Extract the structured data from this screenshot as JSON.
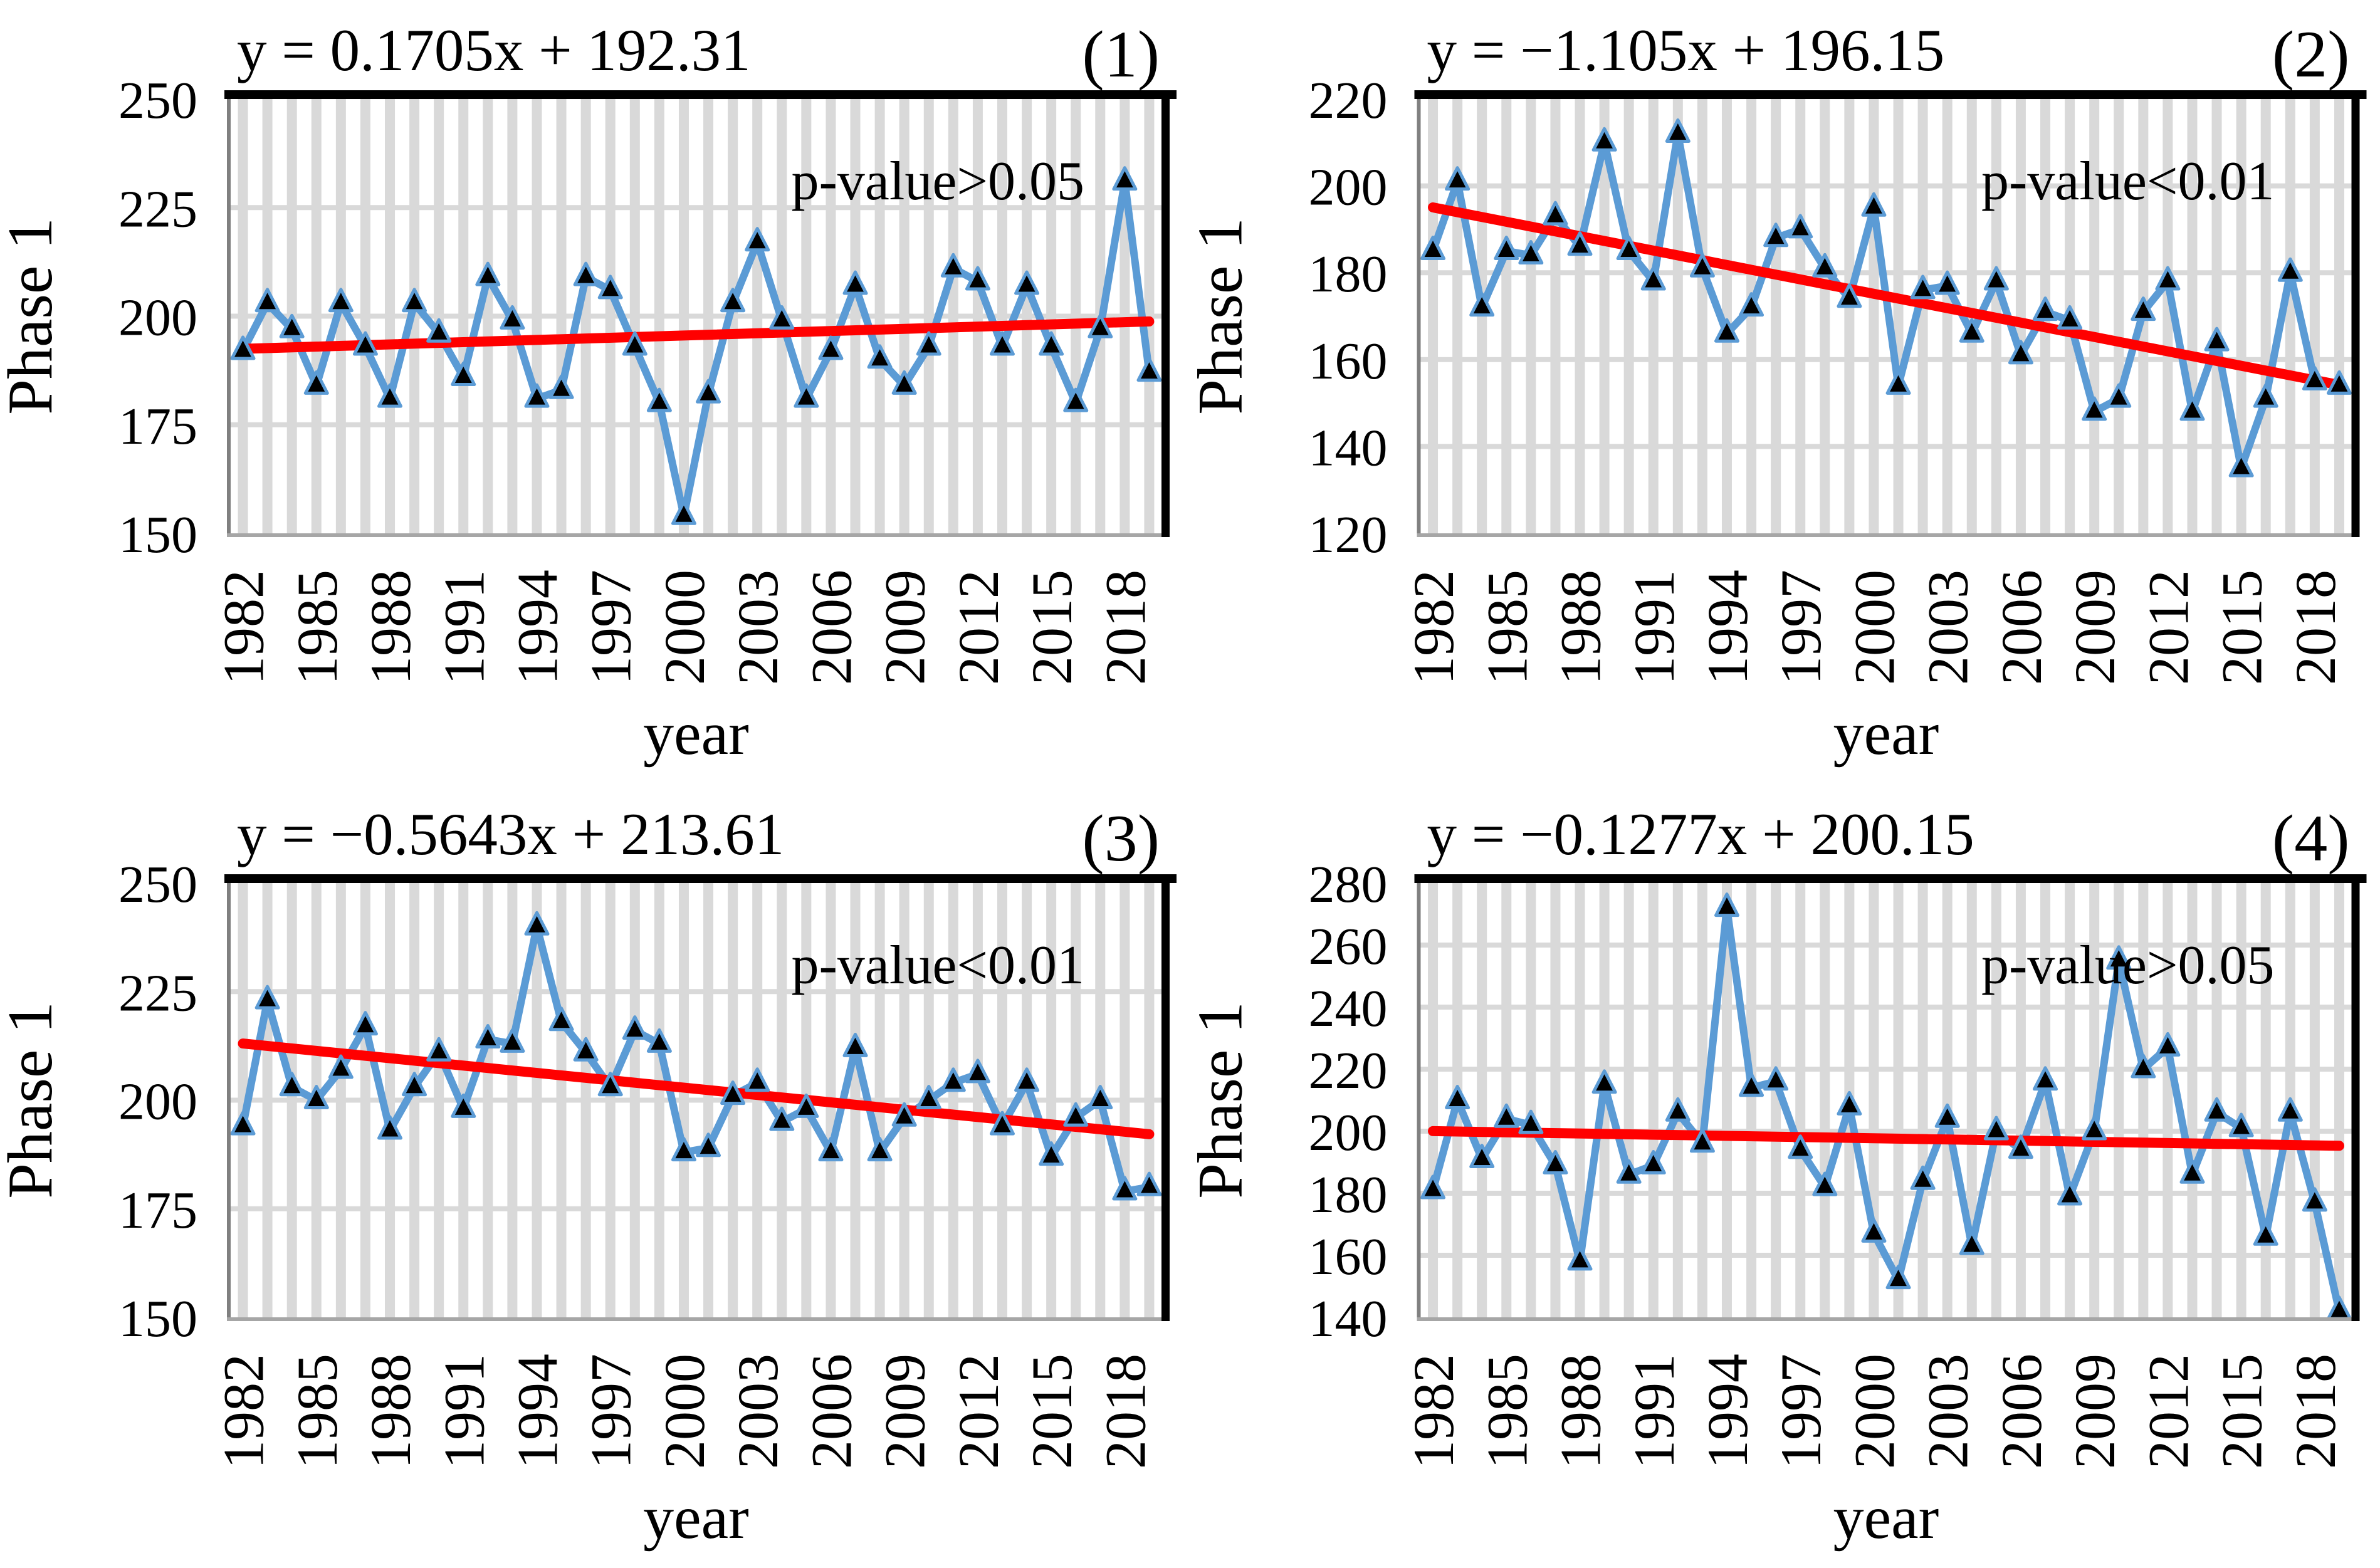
{
  "figure": {
    "background": "#ffffff",
    "years": [
      1982,
      1983,
      1984,
      1985,
      1986,
      1987,
      1988,
      1989,
      1990,
      1991,
      1992,
      1993,
      1994,
      1995,
      1996,
      1997,
      1998,
      1999,
      2000,
      2001,
      2002,
      2003,
      2004,
      2005,
      2006,
      2007,
      2008,
      2009,
      2010,
      2011,
      2012,
      2013,
      2014,
      2015,
      2016,
      2017,
      2018,
      2019
    ],
    "x_tick_years": [
      1982,
      1985,
      1988,
      1991,
      1994,
      1997,
      2000,
      2003,
      2006,
      2009,
      2012,
      2015,
      2018
    ],
    "colors": {
      "series": "#5b9bd5",
      "marker_fill": "#000000",
      "trend": "#ff0000",
      "grid": "#d9d9d9",
      "border_dark": "#000000",
      "border_left": "#808080",
      "border_bottom": "#a6a6a6",
      "text": "#000000"
    }
  },
  "chart_data": [
    {
      "type": "line",
      "panel_label": "(1)",
      "title": "y = 0.1705x + 192.31",
      "p_value": "p-value>0.05",
      "xlabel": "year",
      "ylabel": "Phase 1",
      "trend": {
        "slope": 0.1705,
        "intercept": 192.31
      },
      "ylim": [
        150,
        250
      ],
      "yticks": [
        150,
        175,
        200,
        225,
        250
      ],
      "grid": true,
      "legend_position": "none",
      "values": [
        192,
        203,
        197,
        184,
        203,
        193,
        181,
        203,
        196,
        186,
        209,
        199,
        181,
        183,
        209,
        206,
        193,
        180,
        154,
        182,
        203,
        217,
        199,
        181,
        192,
        207,
        190,
        184,
        193,
        211,
        208,
        193,
        207,
        193,
        180,
        197,
        231,
        187
      ]
    },
    {
      "type": "line",
      "panel_label": "(2)",
      "title": "y = −1.105x + 196.15",
      "p_value": "p-value<0.01",
      "xlabel": "year",
      "ylabel": "Phase 1",
      "trend": {
        "slope": -1.105,
        "intercept": 196.15
      },
      "ylim": [
        120,
        220
      ],
      "yticks": [
        120,
        140,
        160,
        180,
        200,
        220
      ],
      "grid": true,
      "legend_position": "none",
      "values": [
        185,
        201,
        172,
        185,
        184,
        193,
        186,
        210,
        185,
        178,
        212,
        181,
        166,
        172,
        188,
        190,
        181,
        174,
        195,
        154,
        176,
        177,
        166,
        178,
        161,
        171,
        169,
        148,
        151,
        171,
        178,
        148,
        164,
        135,
        151,
        180,
        155,
        154
      ]
    },
    {
      "type": "line",
      "panel_label": "(3)",
      "title": "y = −0.5643x + 213.61",
      "p_value": "p-value<0.01",
      "xlabel": "year",
      "ylabel": "Phase 1",
      "trend": {
        "slope": -0.5643,
        "intercept": 213.61
      },
      "ylim": [
        150,
        250
      ],
      "yticks": [
        150,
        175,
        200,
        225,
        250
      ],
      "grid": true,
      "legend_position": "none",
      "values": [
        194,
        223,
        203,
        200,
        207,
        217,
        193,
        203,
        211,
        198,
        214,
        213,
        240,
        218,
        211,
        203,
        216,
        213,
        188,
        189,
        201,
        204,
        195,
        198,
        188,
        212,
        188,
        196,
        200,
        204,
        206,
        194,
        204,
        187,
        196,
        200,
        179,
        180
      ]
    },
    {
      "type": "line",
      "panel_label": "(4)",
      "title": "y = −0.1277x + 200.15",
      "p_value": "p-value>0.05",
      "xlabel": "year",
      "ylabel": "Phase 1",
      "trend": {
        "slope": -0.1277,
        "intercept": 200.15
      },
      "ylim": [
        140,
        280
      ],
      "yticks": [
        140,
        160,
        180,
        200,
        220,
        240,
        260,
        280
      ],
      "grid": true,
      "legend_position": "none",
      "values": [
        181,
        210,
        191,
        204,
        202,
        189,
        158,
        215,
        186,
        189,
        206,
        196,
        272,
        214,
        216,
        194,
        182,
        208,
        167,
        152,
        184,
        204,
        163,
        200,
        194,
        216,
        179,
        200,
        255,
        220,
        227,
        186,
        206,
        201,
        166,
        206,
        177,
        142
      ]
    }
  ]
}
